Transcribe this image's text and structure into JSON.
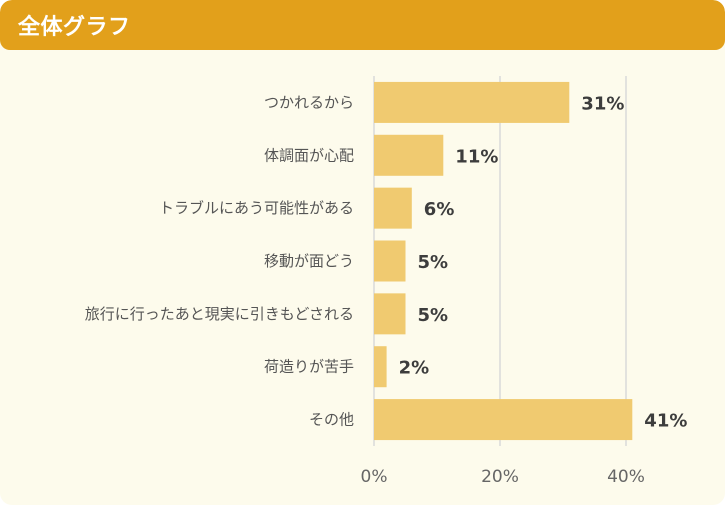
{
  "header": {
    "title": "全体グラフ"
  },
  "colors": {
    "header": "#e2a01b",
    "background": "#fdfbec",
    "bar": "#f0ca70",
    "grid": "#d9d9d9"
  },
  "chart_data": {
    "type": "bar",
    "orientation": "horizontal",
    "categories": [
      "つかれるから",
      "体調面が心配",
      "トラブルにあう可能性がある",
      "移動が面どう",
      "旅行に行ったあと現実に引きもどされる",
      "荷造りが苦手",
      "その他"
    ],
    "values": [
      31,
      11,
      6,
      5,
      5,
      2,
      41
    ],
    "value_labels": [
      "31%",
      "11%",
      "6%",
      "5%",
      "5%",
      "2%",
      "41%"
    ],
    "xlim": [
      0,
      45
    ],
    "xticks": [
      0,
      20,
      40
    ],
    "xtick_labels": [
      "0%",
      "20%",
      "40%"
    ],
    "grid": true
  }
}
